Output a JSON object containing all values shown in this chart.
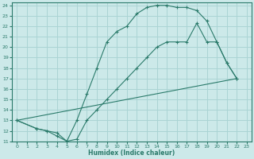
{
  "xlabel": "Humidex (Indice chaleur)",
  "bg_color": "#cce9e9",
  "grid_color": "#aad4d4",
  "line_color": "#2a7a6a",
  "xlim": [
    -0.5,
    23.5
  ],
  "ylim": [
    11,
    24.3
  ],
  "xticks": [
    0,
    1,
    2,
    3,
    4,
    5,
    6,
    7,
    8,
    9,
    10,
    11,
    12,
    13,
    14,
    15,
    16,
    17,
    18,
    19,
    20,
    21,
    22,
    23
  ],
  "yticks": [
    11,
    12,
    13,
    14,
    15,
    16,
    17,
    18,
    19,
    20,
    21,
    22,
    23,
    24
  ],
  "line1_x": [
    0,
    2,
    3,
    4,
    5,
    6,
    7,
    8,
    9,
    10,
    11,
    12,
    13,
    14,
    15,
    16,
    17,
    18,
    19,
    20,
    21,
    22
  ],
  "line1_y": [
    13,
    12.2,
    12,
    11.8,
    11,
    13,
    15.5,
    18,
    20.5,
    21.5,
    22,
    23.2,
    23.8,
    24,
    24,
    23.8,
    23.8,
    23.5,
    22.5,
    20.5,
    18.5,
    17
  ],
  "line2_x": [
    0,
    2,
    3,
    4,
    5,
    6,
    7,
    8,
    9,
    10,
    11,
    12,
    13,
    14,
    15,
    16,
    17,
    18,
    19,
    20,
    21,
    22
  ],
  "line2_y": [
    13,
    12.2,
    12,
    11.5,
    11,
    11.2,
    13,
    14,
    15,
    16,
    17,
    18,
    19,
    20,
    20.5,
    20.5,
    20.5,
    22.3,
    20.5,
    20.5,
    18.5,
    17
  ],
  "line3_x": [
    0,
    22
  ],
  "line3_y": [
    13,
    17
  ]
}
